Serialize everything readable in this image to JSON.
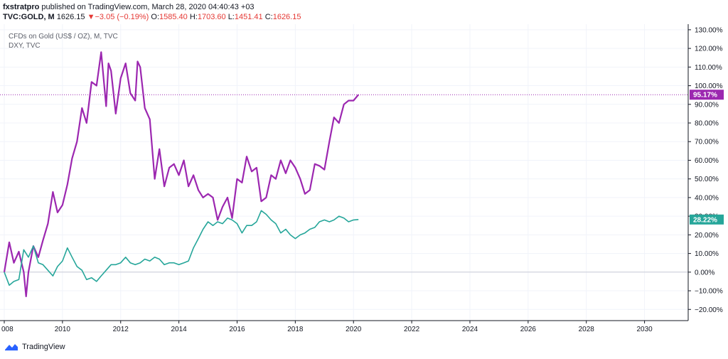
{
  "header": {
    "publisher": "fxstratpro",
    "published_text": "published on TradingView.com, March 28, 2020 04:40:43 +03",
    "symbol": "TVC:GOLD, M",
    "last": "1626.15",
    "change": "−3.05 (−0.19%)",
    "o_label": "O:",
    "o_value": "1585.40",
    "h_label": "H:",
    "h_value": "1703.60",
    "l_label": "L:",
    "l_value": "1451.41",
    "c_label": "C:",
    "c_value": "1626.15"
  },
  "legend": {
    "gold": "CFDs on Gold (US$ / OZ), M, TVC",
    "dxy": "DXY, TVC"
  },
  "footer": {
    "brand": "TradingView"
  },
  "colors": {
    "gold": "#9c27b0",
    "dxy": "#26a69a",
    "grid": "#f0f3fa",
    "axis": "#131722"
  },
  "chart_data": {
    "type": "line",
    "xlim": [
      2008.0,
      2031.5
    ],
    "ylim": [
      -26,
      133
    ],
    "x_ticks": [
      "008",
      "2010",
      "2012",
      "2014",
      "2016",
      "2018",
      "2020",
      "2022",
      "2024",
      "2026",
      "2028",
      "2030"
    ],
    "y_ticks": [
      "130.00%",
      "120.00%",
      "110.00%",
      "100.00%",
      "90.00%",
      "80.00%",
      "70.00%",
      "60.00%",
      "50.00%",
      "40.00%",
      "30.00%",
      "20.00%",
      "10.00%",
      "0.00%",
      "−10.00%",
      "−20.00%"
    ],
    "series": [
      {
        "name": "CFDs on Gold (US$ / OZ), M, TVC",
        "last_label": "95.17%",
        "x": [
          2008.0,
          2008.17,
          2008.33,
          2008.5,
          2008.67,
          2008.75,
          2008.83,
          2009.0,
          2009.17,
          2009.33,
          2009.5,
          2009.67,
          2009.83,
          2010.0,
          2010.17,
          2010.33,
          2010.5,
          2010.67,
          2010.83,
          2011.0,
          2011.17,
          2011.33,
          2011.5,
          2011.58,
          2011.67,
          2011.83,
          2012.0,
          2012.17,
          2012.33,
          2012.5,
          2012.58,
          2012.67,
          2012.83,
          2013.0,
          2013.17,
          2013.33,
          2013.5,
          2013.67,
          2013.83,
          2014.0,
          2014.17,
          2014.33,
          2014.5,
          2014.67,
          2014.83,
          2015.0,
          2015.17,
          2015.33,
          2015.5,
          2015.67,
          2015.83,
          2016.0,
          2016.17,
          2016.33,
          2016.5,
          2016.67,
          2016.83,
          2017.0,
          2017.17,
          2017.33,
          2017.5,
          2017.67,
          2017.83,
          2018.0,
          2018.17,
          2018.33,
          2018.5,
          2018.67,
          2018.83,
          2019.0,
          2019.17,
          2019.33,
          2019.5,
          2019.67,
          2019.83,
          2020.0,
          2020.17
        ],
        "values": [
          0,
          16,
          5,
          11,
          0,
          -13,
          0,
          14,
          8,
          17,
          26,
          43,
          32,
          36,
          47,
          61,
          70,
          88,
          80,
          102,
          100,
          118,
          89,
          112,
          108,
          85,
          104,
          112,
          96,
          92,
          113,
          110,
          88,
          82,
          50,
          66,
          46,
          56,
          58,
          52,
          60,
          46,
          52,
          44,
          40,
          42,
          40,
          28,
          35,
          40,
          29,
          50,
          48,
          62,
          54,
          56,
          38,
          40,
          52,
          50,
          60,
          53,
          60,
          56,
          50,
          42,
          44,
          58,
          57,
          55,
          70,
          83,
          80,
          90,
          92,
          92,
          95.17
        ]
      },
      {
        "name": "DXY, TVC",
        "last_label": "28.22%",
        "x": [
          2008.0,
          2008.17,
          2008.33,
          2008.5,
          2008.67,
          2008.83,
          2009.0,
          2009.17,
          2009.33,
          2009.5,
          2009.67,
          2009.83,
          2010.0,
          2010.17,
          2010.33,
          2010.5,
          2010.67,
          2010.83,
          2011.0,
          2011.17,
          2011.33,
          2011.5,
          2011.67,
          2011.83,
          2012.0,
          2012.17,
          2012.33,
          2012.5,
          2012.67,
          2012.83,
          2013.0,
          2013.17,
          2013.33,
          2013.5,
          2013.67,
          2013.83,
          2014.0,
          2014.17,
          2014.33,
          2014.5,
          2014.67,
          2014.83,
          2015.0,
          2015.17,
          2015.33,
          2015.5,
          2015.67,
          2015.83,
          2016.0,
          2016.17,
          2016.33,
          2016.5,
          2016.67,
          2016.83,
          2017.0,
          2017.17,
          2017.33,
          2017.5,
          2017.67,
          2017.83,
          2018.0,
          2018.17,
          2018.33,
          2018.5,
          2018.67,
          2018.83,
          2019.0,
          2019.17,
          2019.33,
          2019.5,
          2019.67,
          2019.83,
          2020.0,
          2020.17
        ],
        "values": [
          0,
          -7,
          -5,
          -4,
          12,
          8,
          14,
          5,
          4,
          1,
          -2,
          3,
          6,
          13,
          8,
          3,
          1,
          -4,
          -3,
          -5,
          -2,
          1,
          4,
          4,
          5,
          8,
          5,
          4,
          5,
          7,
          6,
          8,
          7,
          4,
          5,
          5,
          4,
          5,
          6,
          13,
          18,
          23,
          27,
          25,
          27,
          26,
          29,
          28,
          26,
          21,
          25,
          25,
          27,
          33,
          31,
          28,
          26,
          21,
          23,
          20,
          18,
          20,
          21,
          23,
          24,
          27,
          28,
          27,
          28,
          30,
          29,
          27,
          28,
          28.22
        ]
      }
    ]
  }
}
